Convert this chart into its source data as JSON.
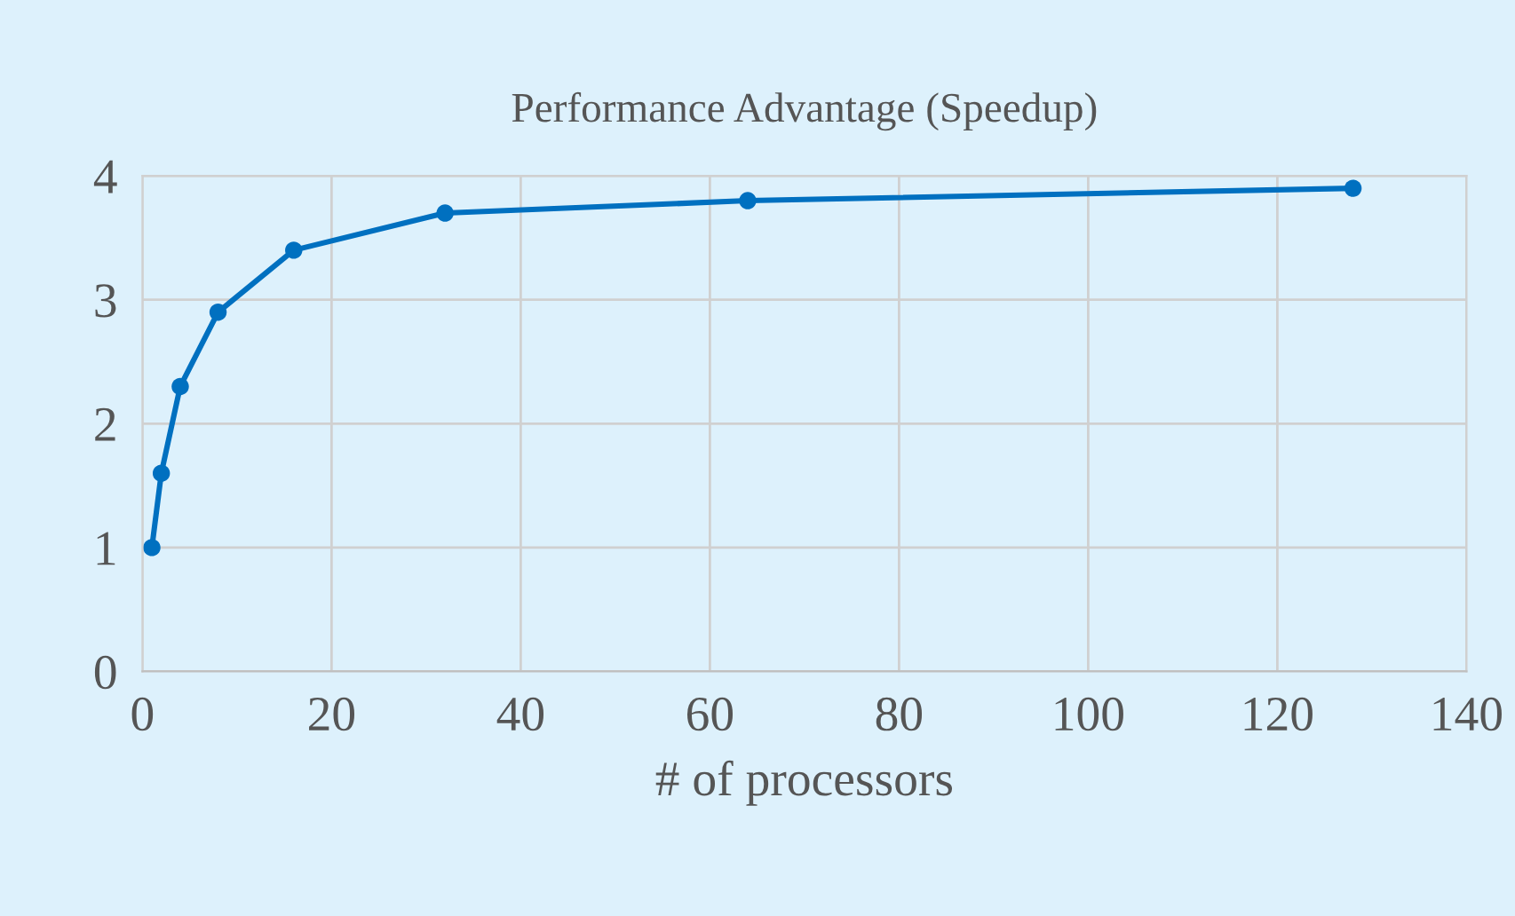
{
  "chart_data": {
    "type": "line",
    "title": "Performance Advantage (Speedup)",
    "xlabel": "# of processors",
    "x": [
      1,
      2,
      4,
      8,
      16,
      32,
      64,
      128
    ],
    "series": [
      {
        "color": "#0070c0",
        "values": [
          1.0,
          1.6,
          2.3,
          2.9,
          3.4,
          3.7,
          3.8,
          3.9
        ]
      }
    ],
    "xlim": [
      0,
      140
    ],
    "xticks": [
      0,
      20,
      40,
      60,
      80,
      100,
      120,
      140
    ],
    "ylim": [
      0,
      4
    ],
    "yticks": [
      0,
      1,
      2,
      3,
      4
    ],
    "grid": true,
    "marker": "circle",
    "line_style": "solid"
  }
}
